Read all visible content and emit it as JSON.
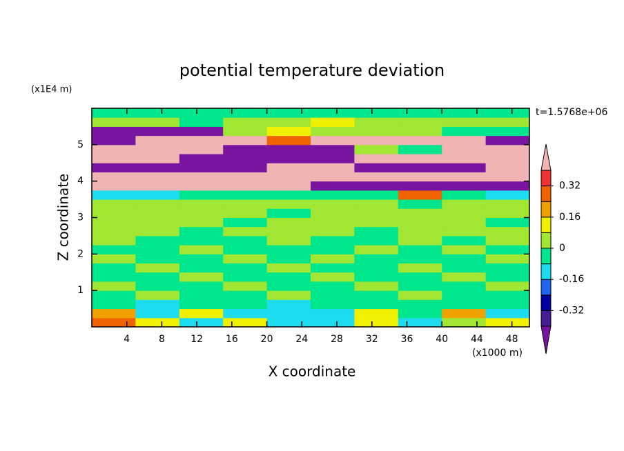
{
  "chart_data": {
    "type": "filled-contour",
    "title": "potential temperature deviation",
    "xlabel": "X coordinate",
    "ylabel": "Z coordinate",
    "x_unit": "(x1000 m)",
    "y_unit": "(x1E4 m)",
    "time_label": "t=1.5768e+06",
    "xlim": [
      0,
      50
    ],
    "ylim": [
      0,
      6
    ],
    "xticks": [
      4,
      8,
      12,
      16,
      20,
      24,
      28,
      32,
      36,
      40,
      44,
      48
    ],
    "yticks": [
      1,
      2,
      3,
      4,
      5
    ],
    "levels": [
      -0.4,
      -0.32,
      -0.24,
      -0.16,
      -0.08,
      0,
      0.08,
      0.16,
      0.24,
      0.32,
      0.4
    ],
    "colors": [
      "#7814a0",
      "#461e96",
      "#0000a0",
      "#1e64f0",
      "#1edcf0",
      "#00e68c",
      "#a0e632",
      "#f0f000",
      "#f0a000",
      "#f06400",
      "#f03232",
      "#f0b4b4"
    ],
    "colorbar_ticks": [
      0.32,
      0.16,
      0,
      -0.16,
      -0.32
    ],
    "field": {
      "x_edges": [
        0,
        5,
        10,
        15,
        20,
        25,
        30,
        35,
        40,
        45,
        50
      ],
      "z_edges": [
        0,
        0.25,
        0.5,
        0.75,
        1,
        1.25,
        1.5,
        1.75,
        2,
        2.25,
        2.5,
        2.75,
        3,
        3.25,
        3.5,
        3.75,
        4,
        4.25,
        4.5,
        4.75,
        5,
        5.25,
        5.5,
        5.75,
        6
      ],
      "values": [
        [
          0.3,
          0.1,
          -0.1,
          0.1,
          -0.1,
          -0.1,
          0.1,
          -0.1,
          0.04,
          0.1
        ],
        [
          0.2,
          -0.12,
          0.1,
          -0.12,
          -0.12,
          -0.12,
          0.1,
          -0.04,
          0.2,
          -0.12
        ],
        [
          -0.04,
          -0.12,
          -0.04,
          -0.04,
          -0.12,
          -0.04,
          -0.04,
          -0.04,
          -0.04,
          -0.04
        ],
        [
          -0.04,
          0.04,
          -0.04,
          -0.04,
          0.04,
          -0.04,
          -0.04,
          0.04,
          -0.04,
          -0.04
        ],
        [
          0.04,
          -0.04,
          -0.04,
          0.04,
          -0.04,
          -0.04,
          0.04,
          -0.04,
          -0.04,
          0.04
        ],
        [
          -0.04,
          -0.04,
          0.04,
          -0.04,
          -0.04,
          0.04,
          -0.04,
          -0.04,
          0.04,
          -0.04
        ],
        [
          -0.04,
          0.04,
          -0.04,
          -0.04,
          0.04,
          -0.04,
          -0.04,
          0.04,
          -0.04,
          -0.04
        ],
        [
          0.04,
          -0.04,
          -0.04,
          0.04,
          -0.04,
          0.04,
          -0.04,
          -0.04,
          -0.04,
          0.04
        ],
        [
          -0.04,
          -0.04,
          0.04,
          -0.04,
          -0.04,
          -0.04,
          0.04,
          -0.04,
          0.04,
          -0.04
        ],
        [
          0.04,
          -0.04,
          -0.04,
          -0.04,
          0.04,
          -0.04,
          -0.04,
          0.04,
          -0.04,
          0.04
        ],
        [
          0.04,
          0.04,
          -0.04,
          0.04,
          0.04,
          0.04,
          -0.04,
          0.04,
          0.04,
          0.04
        ],
        [
          0.04,
          0.04,
          0.04,
          -0.04,
          0.04,
          0.04,
          0.04,
          0.04,
          0.04,
          -0.04
        ],
        [
          0.04,
          0.04,
          0.04,
          0.04,
          -0.04,
          0.04,
          0.04,
          0.04,
          0.04,
          0.04
        ],
        [
          0.04,
          0.04,
          0.04,
          0.04,
          0.04,
          0.04,
          0.04,
          -0.04,
          0.04,
          0.04
        ],
        [
          -0.12,
          -0.12,
          -0.04,
          -0.04,
          -0.04,
          -0.04,
          -0.04,
          0.3,
          -0.04,
          -0.12
        ],
        [
          0.5,
          0.5,
          0.5,
          0.5,
          0.5,
          -0.5,
          -0.5,
          -0.5,
          -0.5,
          -0.5
        ],
        [
          0.5,
          0.5,
          0.5,
          0.5,
          0.5,
          0.5,
          0.5,
          0.5,
          0.5,
          0.5
        ],
        [
          -0.5,
          -0.5,
          -0.5,
          -0.5,
          0.5,
          0.5,
          -0.5,
          -0.5,
          -0.5,
          0.5
        ],
        [
          0.5,
          0.5,
          -0.5,
          -0.5,
          -0.5,
          -0.5,
          0.5,
          0.5,
          0.5,
          0.5
        ],
        [
          0.5,
          0.5,
          0.5,
          -0.5,
          -0.5,
          -0.5,
          0.04,
          -0.04,
          0.5,
          0.5
        ],
        [
          -0.5,
          0.5,
          0.5,
          0.5,
          0.3,
          0.5,
          0.5,
          0.5,
          0.5,
          -0.5
        ],
        [
          -0.5,
          -0.5,
          -0.5,
          0.04,
          0.1,
          0.04,
          0.04,
          0.04,
          -0.04,
          -0.04
        ],
        [
          0.04,
          0.04,
          -0.04,
          0.04,
          0.04,
          0.1,
          0.04,
          0.04,
          0.04,
          0.04
        ],
        [
          -0.04,
          -0.04,
          -0.04,
          -0.04,
          -0.04,
          -0.04,
          -0.04,
          -0.04,
          -0.04,
          -0.04
        ]
      ]
    }
  }
}
